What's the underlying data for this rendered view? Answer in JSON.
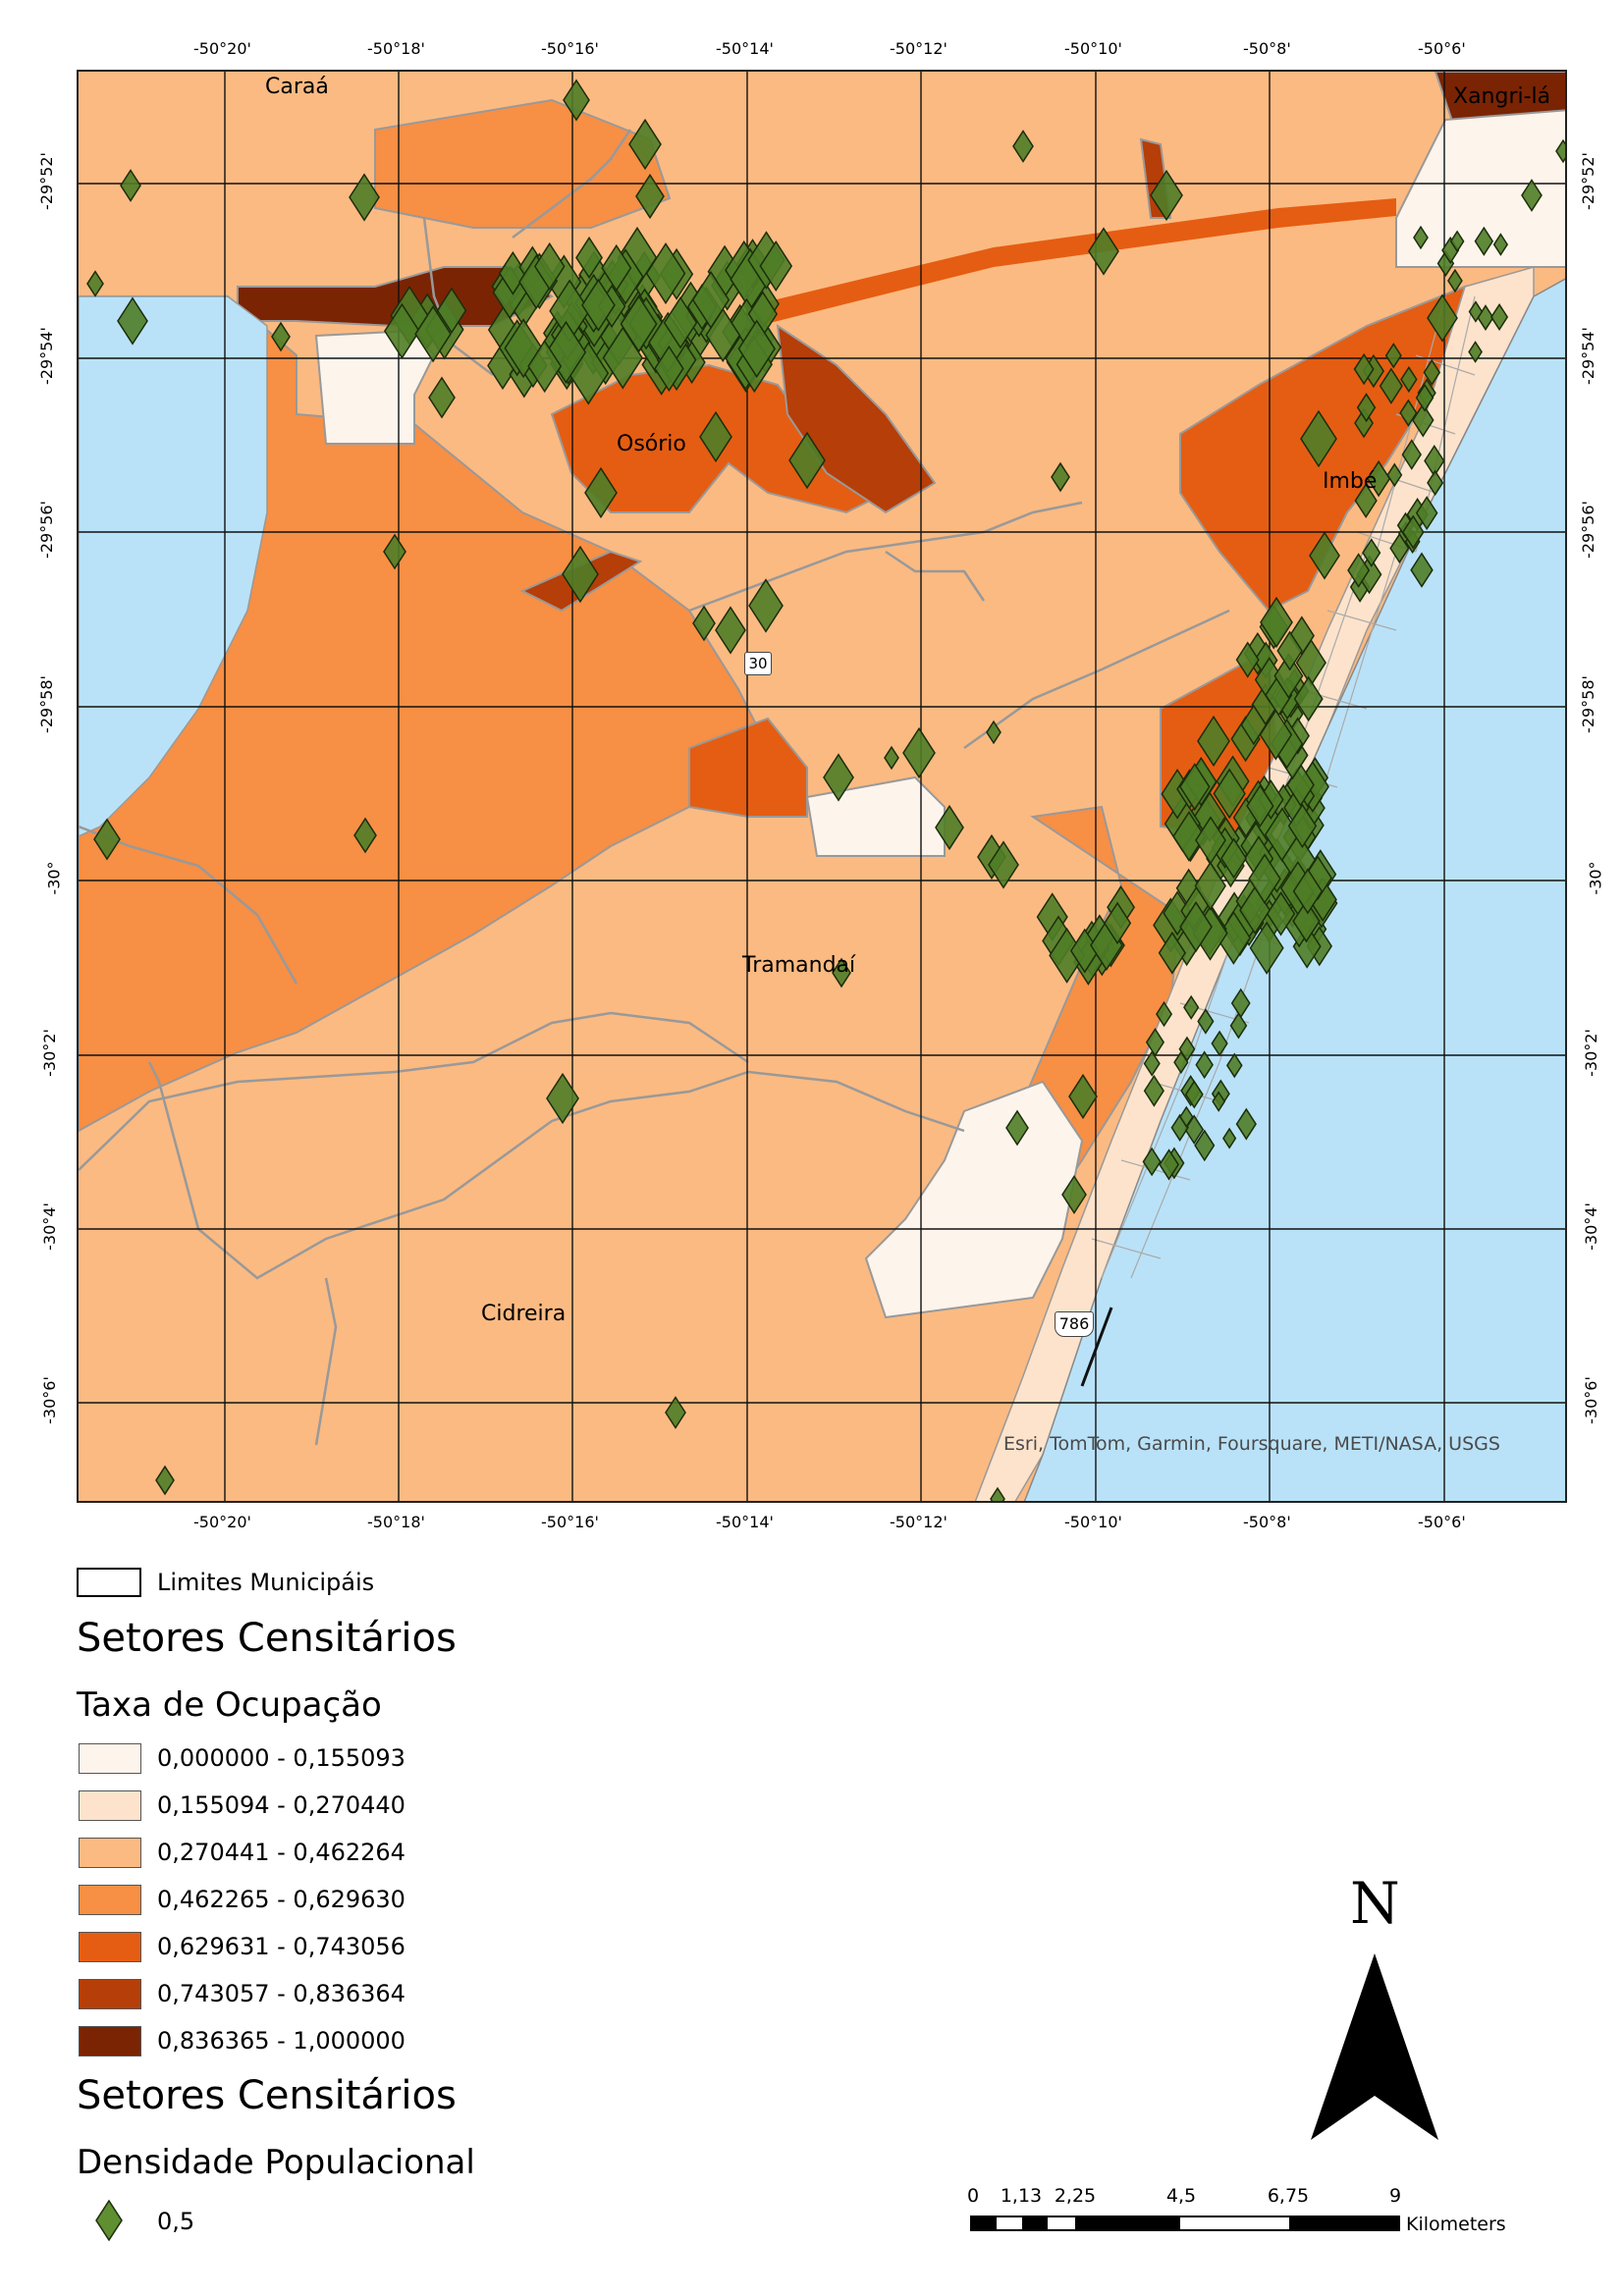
{
  "map": {
    "top_lon_labels": [
      "-50°20'",
      "-50°18'",
      "-50°16'",
      "-50°14'",
      "-50°12'",
      "-50°10'",
      "-50°8'",
      "-50°6'"
    ],
    "bottom_lon_labels": [
      "-50°20'",
      "-50°18'",
      "-50°16'",
      "-50°14'",
      "-50°12'",
      "-50°10'",
      "-50°8'",
      "-50°6'"
    ],
    "left_lat_labels": [
      "-29°52'",
      "-29°54'",
      "-29°56'",
      "-29°58'",
      "-30°",
      "-30°2'",
      "-30°4'",
      "-30°6'"
    ],
    "right_lat_labels": [
      "-29°52'",
      "-29°54'",
      "-29°56'",
      "-29°58'",
      "-30°",
      "-30°2'",
      "-30°4'",
      "-30°6'"
    ],
    "place_names": {
      "caraa": "Caraá",
      "xangrila": "Xangri-lá",
      "osorio": "Osório",
      "imbe": "Imbé",
      "tramandai": "Tramandaí",
      "cidreira": "Cidreira"
    },
    "road_shields": {
      "r786": "786",
      "r30": "30"
    },
    "attribution": "Esri, TomTom, Garmin, Foursquare, METI/NASA, USGS",
    "colors": {
      "water": "#b9e2f8",
      "class1": "#fdf4ec",
      "class2": "#fde3cb",
      "class3": "#fbba82",
      "class4": "#f78f45",
      "class5": "#e55d12",
      "class6": "#b63e08",
      "class7": "#7a2404",
      "boundary": "#999999",
      "symbol_fill": "#4f7d27",
      "symbol_stroke": "#1b2d0b"
    }
  },
  "legend": {
    "boundary_label": "Limites Municipáis",
    "title1": "Setores Censitários",
    "sub1": "Taxa de Ocupação",
    "classes": [
      "0,000000 - 0,155093",
      "0,155094 - 0,270440",
      "0,270441 - 0,462264",
      "0,462265 - 0,629630",
      "0,629631 - 0,743056",
      "0,743057 - 0,836364",
      "0,836365 - 1,000000"
    ],
    "title2": "Setores Censitários",
    "sub2": "Densidade Populacional",
    "symbol_label": "0,5"
  },
  "north_arrow": {
    "label": "N"
  },
  "scale_bar": {
    "labels": [
      "0",
      "1,13",
      "2,25",
      "4,5",
      "6,75",
      "9"
    ],
    "units": "Kilometers"
  }
}
